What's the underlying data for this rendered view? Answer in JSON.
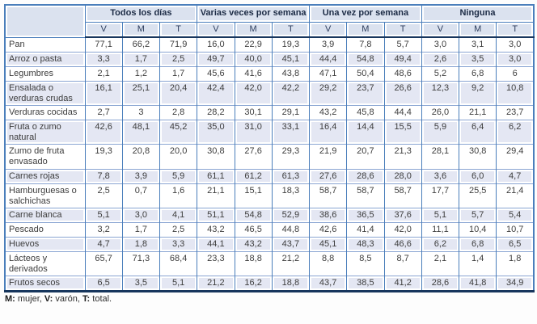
{
  "table": {
    "groups": [
      "Todos los días",
      "Varias veces por semana",
      "Una vez por semana",
      "Ninguna"
    ],
    "sub_headers": [
      "V",
      "M",
      "T"
    ],
    "rows": [
      {
        "label": "Pan",
        "values": [
          "77,1",
          "66,2",
          "71,9",
          "16,0",
          "22,9",
          "19,3",
          "3,9",
          "7,8",
          "5,7",
          "3,0",
          "3,1",
          "3,0"
        ]
      },
      {
        "label": "Arroz o pasta",
        "values": [
          "3,3",
          "1,7",
          "2,5",
          "49,7",
          "40,0",
          "45,1",
          "44,4",
          "54,8",
          "49,4",
          "2,6",
          "3,5",
          "3,0"
        ]
      },
      {
        "label": "Legumbres",
        "values": [
          "2,1",
          "1,2",
          "1,7",
          "45,6",
          "41,6",
          "43,8",
          "47,1",
          "50,4",
          "48,6",
          "5,2",
          "6,8",
          "6"
        ]
      },
      {
        "label": "Ensalada o verduras crudas",
        "values": [
          "16,1",
          "25,1",
          "20,4",
          "42,4",
          "42,0",
          "42,2",
          "29,2",
          "23,7",
          "26,6",
          "12,3",
          "9,2",
          "10,8"
        ]
      },
      {
        "label": "Verduras cocidas",
        "values": [
          "2,7",
          "3",
          "2,8",
          "28,2",
          "30,1",
          "29,1",
          "43,2",
          "45,8",
          "44,4",
          "26,0",
          "21,1",
          "23,7"
        ]
      },
      {
        "label": "Fruta o zumo natural",
        "values": [
          "42,6",
          "48,1",
          "45,2",
          "35,0",
          "31,0",
          "33,1",
          "16,4",
          "14,4",
          "15,5",
          "5,9",
          "6,4",
          "6,2"
        ]
      },
      {
        "label": "Zumo de fruta envasado",
        "values": [
          "19,3",
          "20,8",
          "20,0",
          "30,8",
          "27,6",
          "29,3",
          "21,9",
          "20,7",
          "21,3",
          "28,1",
          "30,8",
          "29,4"
        ]
      },
      {
        "label": "Carnes rojas",
        "values": [
          "7,8",
          "3,9",
          "5,9",
          "61,1",
          "61,2",
          "61,3",
          "27,6",
          "28,6",
          "28,0",
          "3,6",
          "6,0",
          "4,7"
        ]
      },
      {
        "label": "Hamburguesas o salchichas",
        "values": [
          "2,5",
          "0,7",
          "1,6",
          "21,1",
          "15,1",
          "18,3",
          "58,7",
          "58,7",
          "58,7",
          "17,7",
          "25,5",
          "21,4"
        ]
      },
      {
        "label": "Carne blanca",
        "values": [
          "5,1",
          "3,0",
          "4,1",
          "51,1",
          "54,8",
          "52,9",
          "38,6",
          "36,5",
          "37,6",
          "5,1",
          "5,7",
          "5,4"
        ]
      },
      {
        "label": "Pescado",
        "values": [
          "3,2",
          "1,7",
          "2,5",
          "43,2",
          "46,5",
          "44,8",
          "42,6",
          "41,4",
          "42,0",
          "11,1",
          "10,4",
          "10,7"
        ]
      },
      {
        "label": "Huevos",
        "values": [
          "4,7",
          "1,8",
          "3,3",
          "44,1",
          "43,2",
          "43,7",
          "45,1",
          "48,3",
          "46,6",
          "6,2",
          "6,8",
          "6,5"
        ]
      },
      {
        "label": "Lácteos y derivados",
        "values": [
          "65,7",
          "71,3",
          "68,4",
          "23,3",
          "18,8",
          "21,2",
          "8,8",
          "8,5",
          "8,7",
          "2,1",
          "1,4",
          "1,8"
        ]
      },
      {
        "label": "Frutos secos",
        "values": [
          "6,5",
          "3,5",
          "5,1",
          "21,2",
          "16,2",
          "18,8",
          "43,7",
          "38,5",
          "41,2",
          "28,6",
          "41,8",
          "34,9"
        ]
      }
    ]
  },
  "footnote": {
    "parts": [
      {
        "key": "M:",
        "text": "mujer,"
      },
      {
        "key": "V:",
        "text": "varón,"
      },
      {
        "key": "T:",
        "text": "total."
      }
    ]
  },
  "colors": {
    "grid_blue": "#4a7ebb",
    "thick_navy": "#17365d",
    "header_fill": "#dbe2ef",
    "stripe_fill": "#e4e7f3",
    "body_text": "#3d3d3d"
  }
}
